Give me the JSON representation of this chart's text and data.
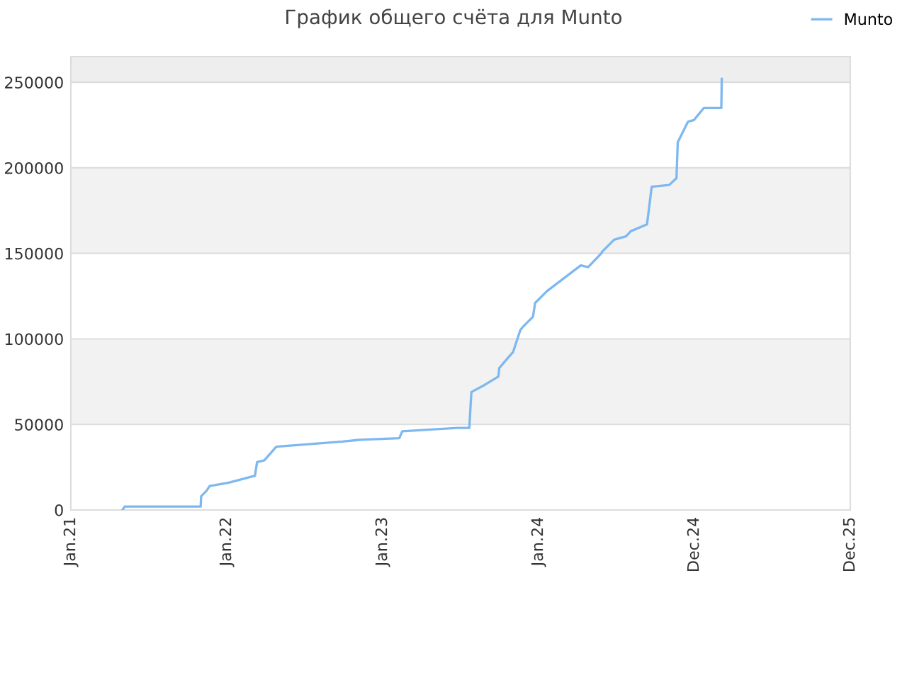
{
  "chart_data": {
    "type": "line",
    "title": "График общего счёта для Munto",
    "xlim": [
      "2021-01-01",
      "2025-12-31"
    ],
    "xticks": [
      {
        "value": "2021-01-01",
        "label": "Jan.21"
      },
      {
        "value": "2022-01-01",
        "label": "Jan.22"
      },
      {
        "value": "2023-01-01",
        "label": "Jan.23"
      },
      {
        "value": "2024-01-01",
        "label": "Jan.24"
      },
      {
        "value": "2024-12-31",
        "label": "Dec.24"
      },
      {
        "value": "2025-12-31",
        "label": "Dec.25"
      }
    ],
    "ylim": [
      0,
      265000
    ],
    "yticks": [
      0,
      50000,
      100000,
      150000,
      200000,
      250000
    ],
    "grid": "y",
    "legend": "top right",
    "bands": [
      {
        "axis": "y",
        "from": 50000,
        "to": 100000,
        "color": "#f2f2f2"
      },
      {
        "axis": "y",
        "from": 150000,
        "to": 200000,
        "color": "#f2f2f2"
      },
      {
        "axis": "y",
        "from": 250000,
        "to": 265000,
        "color": "#eeeeee"
      }
    ],
    "series": [
      {
        "name": "Munto",
        "color": "#7fb8f0",
        "x": [
          "2021-05-02",
          "2021-05-07",
          "2021-11-01",
          "2021-11-02",
          "2021-11-14",
          "2021-11-22",
          "2022-01-06",
          "2022-03-08",
          "2022-03-13",
          "2022-03-30",
          "2022-04-27",
          "2022-09-29",
          "2022-11-07",
          "2023-02-09",
          "2023-02-16",
          "2023-06-25",
          "2023-07-23",
          "2023-07-27",
          "2023-07-28",
          "2023-08-27",
          "2023-09-29",
          "2023-10-01",
          "2023-11-01",
          "2023-11-02",
          "2023-11-19",
          "2023-11-25",
          "2023-12-19",
          "2023-12-24",
          "2024-01-21",
          "2024-04-09",
          "2024-04-26",
          "2024-05-27",
          "2024-05-29",
          "2024-06-26",
          "2024-07-24",
          "2024-08-04",
          "2024-09-11",
          "2024-09-22",
          "2024-11-02",
          "2024-11-19",
          "2024-11-22",
          "2024-12-16",
          "2024-12-30",
          "2025-01-22",
          "2025-01-30",
          "2025-02-03",
          "2025-03-04",
          "2025-03-05"
        ],
        "values": [
          0,
          2000,
          2000,
          8000,
          11000,
          14000,
          16000,
          20000,
          28000,
          29000,
          37000,
          40000,
          41000,
          42000,
          46000,
          48000,
          48000,
          66000,
          69000,
          73000,
          78000,
          83000,
          92000,
          92000,
          105000,
          107000,
          113000,
          121000,
          128000,
          143000,
          142000,
          150000,
          151000,
          158000,
          160000,
          163000,
          167000,
          189000,
          190000,
          194000,
          215000,
          227000,
          228000,
          235000,
          235000,
          235000,
          235000,
          252000
        ]
      }
    ]
  }
}
